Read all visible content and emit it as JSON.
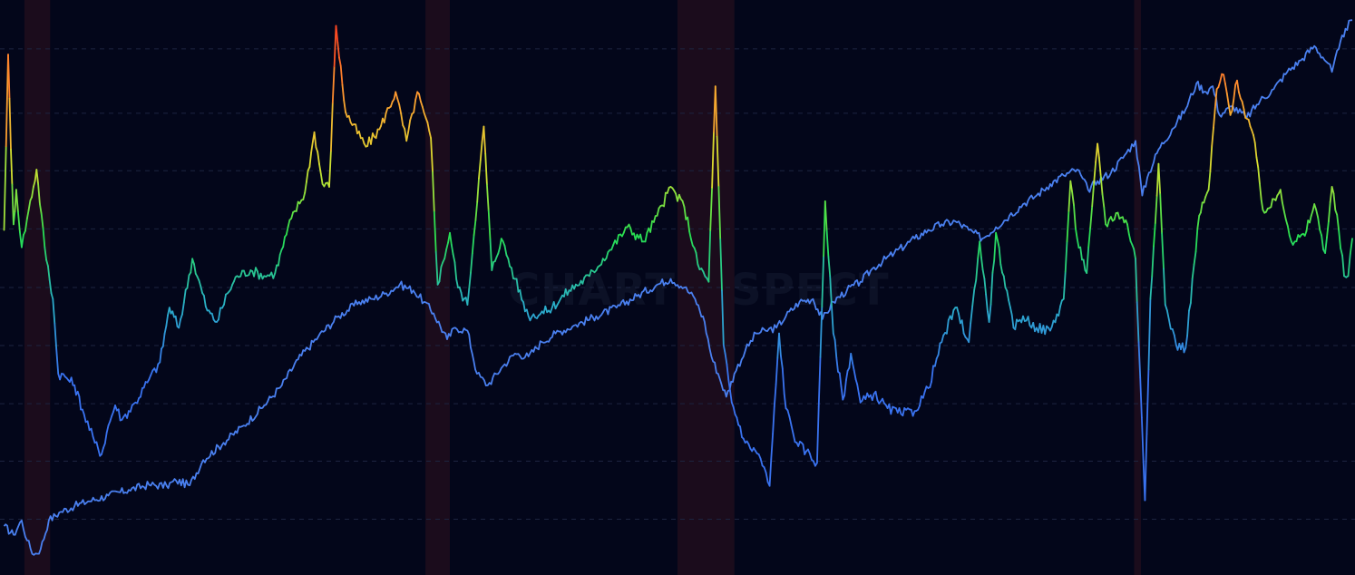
{
  "watermark": "CHARTINSPECT",
  "colors": {
    "background": "#03061a",
    "grid": "#1d2440",
    "recession": "#1b0c1c",
    "index_line": "#4a80f0",
    "ratio_scale": [
      "#3a73f0",
      "#2ab0c8",
      "#28e050",
      "#d8e030",
      "#ff9a30",
      "#ff3a20"
    ]
  },
  "chart_data": {
    "type": "line",
    "title": "",
    "xlabel": "",
    "ylabel": "",
    "grid": true,
    "legend": "none",
    "x_range": [
      0,
      100
    ],
    "y_range": [
      0,
      100
    ],
    "gridlines_y": [
      91.5,
      80.3,
      70.3,
      60.2,
      50,
      39.9,
      29.8,
      19.8,
      9.7
    ],
    "recession_bands": [
      [
        1.8,
        3.7
      ],
      [
        31.4,
        33.2
      ],
      [
        50.0,
        54.2
      ],
      [
        83.7,
        84.2
      ]
    ],
    "series": [
      {
        "name": "",
        "color_mode": "fixed",
        "points": [
          [
            0.3,
            8.5
          ],
          [
            1.0,
            7.0
          ],
          [
            1.6,
            9.5
          ],
          [
            2.0,
            6.0
          ],
          [
            2.5,
            3.5
          ],
          [
            3.0,
            4.5
          ],
          [
            3.6,
            9.5
          ],
          [
            4.5,
            11.0
          ],
          [
            5.5,
            12.0
          ],
          [
            6.5,
            12.8
          ],
          [
            8.0,
            13.8
          ],
          [
            9.5,
            14.8
          ],
          [
            11.0,
            15.7
          ],
          [
            12.3,
            15.5
          ],
          [
            13.0,
            16.4
          ],
          [
            14.0,
            15.6
          ],
          [
            15.0,
            20.0
          ],
          [
            16.5,
            23.0
          ],
          [
            18.0,
            26.0
          ],
          [
            19.5,
            29.5
          ],
          [
            20.8,
            33.0
          ],
          [
            22.0,
            37.5
          ],
          [
            23.5,
            41.5
          ],
          [
            25.0,
            45.0
          ],
          [
            26.5,
            47.5
          ],
          [
            27.5,
            48.0
          ],
          [
            28.5,
            49.0
          ],
          [
            29.5,
            50.5
          ],
          [
            30.5,
            49.5
          ],
          [
            31.3,
            47.5
          ],
          [
            32.0,
            45.5
          ],
          [
            33.0,
            41.0
          ],
          [
            33.6,
            43.0
          ],
          [
            34.5,
            42.5
          ],
          [
            35.2,
            35.0
          ],
          [
            36.0,
            33.0
          ],
          [
            37.0,
            36.0
          ],
          [
            38.0,
            38.5
          ],
          [
            39.0,
            38.0
          ],
          [
            40.0,
            40.5
          ],
          [
            41.0,
            42.0
          ],
          [
            42.5,
            43.5
          ],
          [
            44.0,
            45.0
          ],
          [
            45.5,
            46.5
          ],
          [
            47.0,
            48.5
          ],
          [
            48.5,
            50.5
          ],
          [
            49.5,
            51.5
          ],
          [
            50.5,
            50.0
          ],
          [
            51.3,
            48.0
          ],
          [
            52.0,
            44.0
          ],
          [
            52.5,
            38.0
          ],
          [
            53.0,
            35.0
          ],
          [
            53.6,
            31.0
          ],
          [
            54.2,
            35.0
          ],
          [
            55.0,
            39.0
          ],
          [
            55.8,
            42.0
          ],
          [
            56.5,
            42.5
          ],
          [
            57.3,
            43.0
          ],
          [
            58.0,
            45.0
          ],
          [
            59.0,
            47.5
          ],
          [
            60.0,
            48.0
          ],
          [
            60.7,
            44.5
          ],
          [
            61.5,
            47.5
          ],
          [
            62.5,
            49.5
          ],
          [
            63.5,
            51.0
          ],
          [
            64.5,
            53.5
          ],
          [
            66.0,
            56.0
          ],
          [
            67.5,
            58.5
          ],
          [
            68.5,
            60.0
          ],
          [
            69.5,
            61.0
          ],
          [
            70.5,
            61.5
          ],
          [
            71.5,
            60.0
          ],
          [
            72.5,
            58.5
          ],
          [
            73.5,
            60.5
          ],
          [
            74.5,
            62.5
          ],
          [
            75.5,
            64.5
          ],
          [
            76.5,
            66.0
          ],
          [
            77.5,
            68.0
          ],
          [
            78.5,
            69.5
          ],
          [
            79.5,
            70.5
          ],
          [
            80.3,
            67.0
          ],
          [
            81.0,
            68.5
          ],
          [
            82.0,
            70.0
          ],
          [
            83.0,
            73.0
          ],
          [
            83.8,
            75.5
          ],
          [
            84.3,
            66.0
          ],
          [
            84.8,
            70.0
          ],
          [
            85.5,
            74.0
          ],
          [
            86.5,
            77.5
          ],
          [
            87.5,
            81.0
          ],
          [
            88.3,
            85.5
          ],
          [
            89.0,
            84.0
          ],
          [
            89.5,
            85.0
          ],
          [
            90.0,
            80.0
          ],
          [
            91.0,
            81.5
          ],
          [
            92.0,
            79.5
          ],
          [
            93.0,
            82.5
          ],
          [
            94.0,
            84.5
          ],
          [
            95.0,
            87.5
          ],
          [
            96.0,
            89.5
          ],
          [
            97.0,
            92.0
          ],
          [
            98.0,
            89.0
          ],
          [
            98.3,
            87.5
          ],
          [
            98.8,
            91.5
          ],
          [
            99.3,
            95.0
          ],
          [
            99.8,
            96.5
          ]
        ]
      },
      {
        "name": "",
        "color_mode": "by_value",
        "points": [
          [
            0.3,
            60.0
          ],
          [
            0.6,
            90.5
          ],
          [
            0.8,
            74.0
          ],
          [
            1.0,
            61.0
          ],
          [
            1.2,
            67.0
          ],
          [
            1.6,
            57.0
          ],
          [
            2.0,
            62.0
          ],
          [
            2.7,
            70.5
          ],
          [
            3.3,
            57.0
          ],
          [
            3.9,
            48.0
          ],
          [
            4.3,
            35.0
          ],
          [
            4.8,
            34.5
          ],
          [
            5.5,
            33.0
          ],
          [
            6.2,
            28.0
          ],
          [
            7.0,
            23.0
          ],
          [
            7.5,
            21.0
          ],
          [
            8.0,
            26.0
          ],
          [
            8.5,
            29.5
          ],
          [
            9.0,
            27.0
          ],
          [
            10.0,
            30.0
          ],
          [
            11.0,
            34.0
          ],
          [
            11.8,
            37.0
          ],
          [
            12.5,
            46.5
          ],
          [
            13.2,
            43.0
          ],
          [
            14.2,
            55.0
          ],
          [
            15.3,
            46.0
          ],
          [
            16.0,
            44.0
          ],
          [
            16.8,
            49.0
          ],
          [
            17.5,
            52.0
          ],
          [
            18.5,
            53.0
          ],
          [
            19.5,
            52.0
          ],
          [
            20.3,
            52.5
          ],
          [
            21.5,
            62.0
          ],
          [
            22.5,
            66.5
          ],
          [
            23.2,
            77.0
          ],
          [
            23.8,
            68.0
          ],
          [
            24.3,
            67.5
          ],
          [
            24.8,
            95.5
          ],
          [
            25.5,
            80.5
          ],
          [
            27.0,
            74.5
          ],
          [
            28.0,
            77.5
          ],
          [
            29.2,
            84.0
          ],
          [
            30.0,
            75.5
          ],
          [
            30.8,
            84.0
          ],
          [
            31.8,
            76.0
          ],
          [
            32.3,
            50.5
          ],
          [
            33.2,
            59.5
          ],
          [
            33.8,
            50.0
          ],
          [
            34.5,
            47.0
          ],
          [
            35.7,
            78.0
          ],
          [
            36.3,
            53.0
          ],
          [
            37.0,
            58.5
          ],
          [
            38.0,
            51.5
          ],
          [
            39.0,
            45.0
          ],
          [
            40.5,
            46.0
          ],
          [
            42.0,
            49.5
          ],
          [
            43.5,
            52.0
          ],
          [
            45.0,
            56.5
          ],
          [
            46.3,
            60.5
          ],
          [
            47.5,
            58.0
          ],
          [
            48.5,
            62.5
          ],
          [
            49.5,
            67.5
          ],
          [
            50.5,
            64.0
          ],
          [
            51.5,
            54.0
          ],
          [
            52.3,
            51.0
          ],
          [
            52.8,
            85.0
          ],
          [
            53.4,
            40.0
          ],
          [
            54.0,
            30.0
          ],
          [
            55.0,
            23.0
          ],
          [
            56.0,
            21.0
          ],
          [
            56.8,
            15.5
          ],
          [
            57.5,
            42.0
          ],
          [
            58.0,
            29.0
          ],
          [
            58.8,
            23.0
          ],
          [
            59.5,
            21.5
          ],
          [
            60.3,
            19.5
          ],
          [
            60.9,
            65.0
          ],
          [
            61.5,
            42.0
          ],
          [
            62.2,
            30.5
          ],
          [
            62.8,
            38.5
          ],
          [
            63.5,
            30.0
          ],
          [
            64.5,
            31.5
          ],
          [
            65.5,
            29.0
          ],
          [
            66.5,
            28.0
          ],
          [
            67.5,
            28.5
          ],
          [
            68.5,
            32.5
          ],
          [
            69.5,
            40.5
          ],
          [
            70.5,
            46.5
          ],
          [
            71.5,
            40.5
          ],
          [
            72.3,
            58.0
          ],
          [
            73.0,
            44.0
          ],
          [
            73.5,
            59.5
          ],
          [
            74.2,
            50.0
          ],
          [
            74.8,
            43.0
          ],
          [
            75.5,
            45.0
          ],
          [
            76.5,
            43.0
          ],
          [
            77.5,
            42.5
          ],
          [
            78.5,
            48.0
          ],
          [
            79.0,
            68.5
          ],
          [
            79.5,
            58.5
          ],
          [
            80.2,
            52.5
          ],
          [
            81.0,
            75.0
          ],
          [
            81.6,
            61.0
          ],
          [
            82.5,
            63.0
          ],
          [
            83.2,
            61.0
          ],
          [
            83.8,
            55.0
          ],
          [
            84.5,
            13.0
          ],
          [
            84.9,
            48.0
          ],
          [
            85.5,
            71.5
          ],
          [
            86.0,
            47.0
          ],
          [
            86.8,
            40.0
          ],
          [
            87.5,
            39.5
          ],
          [
            88.5,
            62.5
          ],
          [
            89.2,
            67.0
          ],
          [
            89.8,
            84.5
          ],
          [
            90.3,
            87.0
          ],
          [
            90.8,
            80.0
          ],
          [
            91.3,
            86.0
          ],
          [
            91.8,
            81.0
          ],
          [
            92.5,
            76.5
          ],
          [
            93.2,
            63.5
          ],
          [
            93.8,
            64.0
          ],
          [
            94.5,
            67.0
          ],
          [
            95.3,
            58.0
          ],
          [
            96.3,
            59.0
          ],
          [
            97.0,
            64.5
          ],
          [
            97.8,
            56.0
          ],
          [
            98.3,
            67.5
          ],
          [
            98.8,
            60.0
          ],
          [
            99.2,
            52.0
          ],
          [
            99.5,
            52.0
          ],
          [
            99.8,
            58.5
          ]
        ]
      }
    ]
  }
}
